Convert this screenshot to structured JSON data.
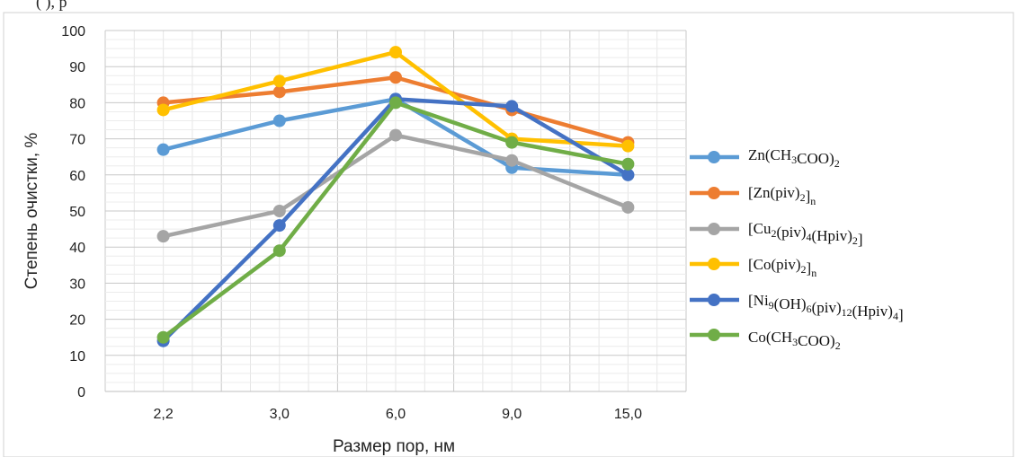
{
  "top_fragment": "(            ), p",
  "chart_data": {
    "type": "line",
    "categories": [
      "2,2",
      "3,0",
      "6,0",
      "9,0",
      "15,0"
    ],
    "xlabel": "Размер пор, нм",
    "ylabel": "Степень очистки, %",
    "ylim": [
      0,
      100
    ],
    "yticks": [
      0,
      10,
      20,
      30,
      40,
      50,
      60,
      70,
      80,
      90,
      100
    ],
    "grid": true,
    "legend_position": "right",
    "series": [
      {
        "name": "Zn(CH3COO)2",
        "legend_parts": [
          [
            "Zn(CH",
            ""
          ],
          [
            "3",
            "sub"
          ],
          [
            "COO)",
            ""
          ],
          [
            "2",
            "sub"
          ]
        ],
        "color": "#5B9BD5",
        "values": [
          67,
          75,
          81,
          62,
          60
        ]
      },
      {
        "name": "[Zn(piv)2]n",
        "legend_parts": [
          [
            "[Zn(piv)",
            ""
          ],
          [
            "2",
            "sub"
          ],
          [
            "]",
            ""
          ],
          [
            "n",
            "sub"
          ]
        ],
        "color": "#ED7D31",
        "values": [
          80,
          83,
          87,
          78,
          69
        ]
      },
      {
        "name": "[Cu2(piv)4(Hpiv)2]",
        "legend_parts": [
          [
            "[Cu",
            ""
          ],
          [
            "2",
            "sub"
          ],
          [
            "(piv)",
            ""
          ],
          [
            "4",
            "sub"
          ],
          [
            "(Hpiv)",
            ""
          ],
          [
            "2",
            "sub"
          ],
          [
            "]",
            ""
          ]
        ],
        "color": "#A5A5A5",
        "values": [
          43,
          50,
          71,
          64,
          51
        ]
      },
      {
        "name": "[Co(piv)2]n",
        "legend_parts": [
          [
            "[Co(piv)",
            ""
          ],
          [
            "2",
            "sub"
          ],
          [
            "]",
            ""
          ],
          [
            "n",
            "sub"
          ]
        ],
        "color": "#FFC000",
        "values": [
          78,
          86,
          94,
          70,
          68
        ]
      },
      {
        "name": "[Ni9(OH)6(piv)12(Hpiv)4]",
        "legend_parts": [
          [
            "[Ni",
            ""
          ],
          [
            "9",
            "sub"
          ],
          [
            "(OH)",
            ""
          ],
          [
            "6",
            "sub"
          ],
          [
            "(piv)",
            ""
          ],
          [
            "12",
            "sub"
          ],
          [
            "(Hpiv)",
            ""
          ],
          [
            "4",
            "sub"
          ],
          [
            "]",
            ""
          ]
        ],
        "color": "#4472C4",
        "values": [
          14,
          46,
          81,
          79,
          60
        ]
      },
      {
        "name": "Co(CH3COO)2",
        "legend_parts": [
          [
            "Co(CH",
            ""
          ],
          [
            "3",
            "sub"
          ],
          [
            "COO)",
            ""
          ],
          [
            "2",
            "sub"
          ]
        ],
        "color": "#70AD47",
        "values": [
          15,
          39,
          80,
          69,
          63
        ]
      }
    ]
  }
}
